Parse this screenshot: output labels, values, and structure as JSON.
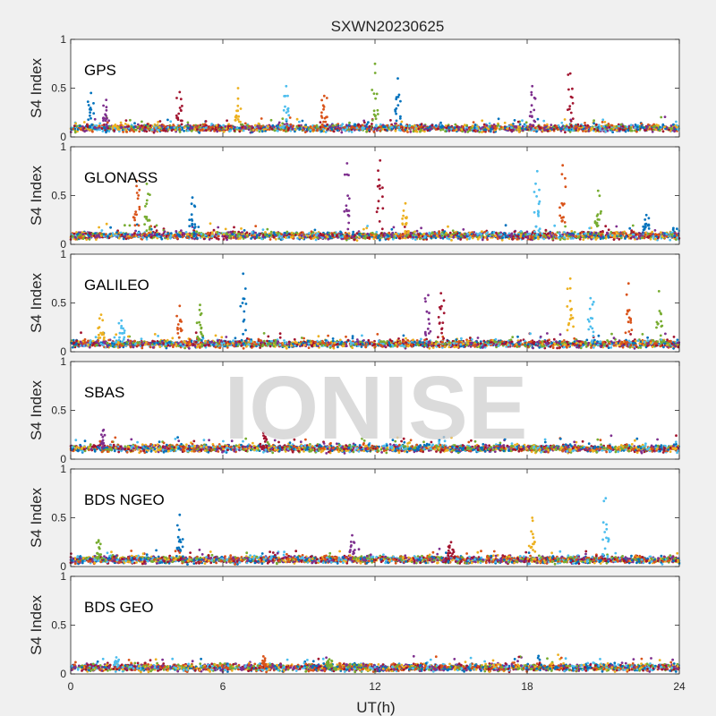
{
  "chart_data": {
    "type": "scatter",
    "title": "SXWN20230625",
    "xlabel": "UT(h)",
    "ylabel": "S4 Index",
    "xlim": [
      0,
      24
    ],
    "ylim": [
      0,
      1
    ],
    "xticks": [
      "0",
      "6",
      "12",
      "18",
      "24"
    ],
    "yticks": [
      "0",
      "0.5",
      "1"
    ],
    "watermark": "IONISE",
    "colors": [
      "#0072bd",
      "#d95319",
      "#edb120",
      "#7e2f8e",
      "#77ac30",
      "#4dbeee",
      "#a2142f"
    ],
    "panels": [
      {
        "label": "GPS",
        "baseline": 0.09,
        "spikes": [
          {
            "x": 0.8,
            "y": 0.45
          },
          {
            "x": 1.4,
            "y": 0.38
          },
          {
            "x": 4.3,
            "y": 0.46
          },
          {
            "x": 6.6,
            "y": 0.5
          },
          {
            "x": 8.5,
            "y": 0.52
          },
          {
            "x": 10.0,
            "y": 0.42
          },
          {
            "x": 12.0,
            "y": 0.75
          },
          {
            "x": 12.9,
            "y": 0.6
          },
          {
            "x": 18.2,
            "y": 0.52
          },
          {
            "x": 19.7,
            "y": 0.65
          }
        ]
      },
      {
        "label": "GLONASS",
        "baseline": 0.09,
        "spikes": [
          {
            "x": 2.6,
            "y": 0.65
          },
          {
            "x": 3.0,
            "y": 0.62
          },
          {
            "x": 4.8,
            "y": 0.48
          },
          {
            "x": 10.9,
            "y": 0.83
          },
          {
            "x": 12.2,
            "y": 0.86
          },
          {
            "x": 13.2,
            "y": 0.42
          },
          {
            "x": 18.4,
            "y": 0.75
          },
          {
            "x": 19.4,
            "y": 0.81
          },
          {
            "x": 20.8,
            "y": 0.55
          },
          {
            "x": 22.7,
            "y": 0.3
          }
        ]
      },
      {
        "label": "GALILEO",
        "baseline": 0.08,
        "spikes": [
          {
            "x": 1.2,
            "y": 0.38
          },
          {
            "x": 2.0,
            "y": 0.32
          },
          {
            "x": 4.3,
            "y": 0.47
          },
          {
            "x": 5.1,
            "y": 0.48
          },
          {
            "x": 6.8,
            "y": 0.8
          },
          {
            "x": 14.1,
            "y": 0.58
          },
          {
            "x": 14.6,
            "y": 0.6
          },
          {
            "x": 19.7,
            "y": 0.75
          },
          {
            "x": 20.5,
            "y": 0.55
          },
          {
            "x": 22.0,
            "y": 0.7
          },
          {
            "x": 23.2,
            "y": 0.62
          }
        ]
      },
      {
        "label": "SBAS",
        "baseline": 0.11,
        "spikes": [
          {
            "x": 1.3,
            "y": 0.3
          },
          {
            "x": 7.6,
            "y": 0.27
          }
        ]
      },
      {
        "label": "BDS NGEO",
        "baseline": 0.07,
        "spikes": [
          {
            "x": 1.1,
            "y": 0.27
          },
          {
            "x": 4.3,
            "y": 0.53
          },
          {
            "x": 11.1,
            "y": 0.32
          },
          {
            "x": 15.0,
            "y": 0.25
          },
          {
            "x": 18.2,
            "y": 0.5
          },
          {
            "x": 21.1,
            "y": 0.7
          }
        ]
      },
      {
        "label": "BDS GEO",
        "baseline": 0.065,
        "spikes": [
          {
            "x": 1.8,
            "y": 0.17
          },
          {
            "x": 7.6,
            "y": 0.18
          },
          {
            "x": 10.2,
            "y": 0.15
          }
        ]
      }
    ]
  }
}
